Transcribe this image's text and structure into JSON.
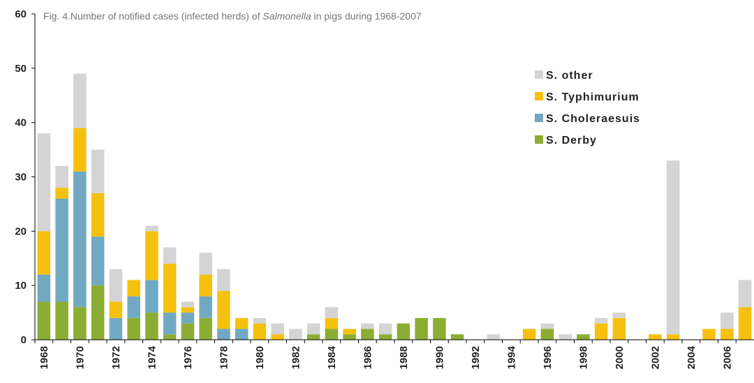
{
  "chart_data": {
    "type": "bar",
    "stacked": true,
    "title": [
      "Fig. 4.Number of notified cases (infected herds) of ",
      "Salmonella",
      " in pigs during 1968-2007"
    ],
    "categories": [
      "1968",
      null,
      "1970",
      null,
      "1972",
      null,
      "1974",
      null,
      "1976",
      null,
      "1978",
      null,
      "1980",
      null,
      "1982",
      null,
      "1984",
      null,
      "1986",
      null,
      "1988",
      null,
      "1990",
      null,
      "1992",
      null,
      "1994",
      null,
      "1996",
      null,
      "1998",
      null,
      "2000",
      null,
      "2002",
      null,
      "2004",
      null,
      "2006",
      null
    ],
    "series": [
      {
        "name": "S. Derby",
        "color": "#8cad33",
        "values": [
          7,
          7,
          6,
          10,
          0,
          4,
          5,
          1,
          3,
          4,
          0,
          0,
          0,
          0,
          0,
          1,
          2,
          1,
          2,
          1,
          3,
          4,
          4,
          1,
          0,
          0,
          0,
          0,
          2,
          0,
          1,
          0,
          0,
          0,
          0,
          0,
          0,
          0,
          0,
          0
        ]
      },
      {
        "name": "S. Choleraesuis",
        "color": "#72a9c2",
        "values": [
          5,
          19,
          25,
          9,
          4,
          4,
          6,
          4,
          2,
          4,
          2,
          2,
          0,
          0,
          0,
          0,
          0,
          0,
          0,
          0,
          0,
          0,
          0,
          0,
          0,
          0,
          0,
          0,
          0,
          0,
          0,
          0,
          0,
          0,
          0,
          0,
          0,
          0,
          0,
          0
        ]
      },
      {
        "name": "S. Typhimurium",
        "color": "#f5c10e",
        "values": [
          8,
          2,
          8,
          8,
          3,
          3,
          9,
          9,
          1,
          4,
          7,
          2,
          3,
          1,
          0,
          0,
          2,
          1,
          0,
          0,
          0,
          0,
          0,
          0,
          0,
          0,
          0,
          2,
          0,
          0,
          0,
          3,
          4,
          0,
          1,
          1,
          0,
          2,
          2,
          6
        ]
      },
      {
        "name": "S. other",
        "color": "#d4d4d4",
        "values": [
          18,
          4,
          10,
          8,
          6,
          0,
          1,
          3,
          1,
          4,
          4,
          0,
          1,
          2,
          2,
          2,
          2,
          0,
          1,
          2,
          0,
          0,
          0,
          0,
          0,
          1,
          0,
          0,
          1,
          1,
          0,
          1,
          1,
          0,
          0,
          32,
          0,
          0,
          3,
          5
        ]
      }
    ],
    "ylim": [
      0,
      60
    ],
    "yticks": [
      0,
      10,
      20,
      30,
      40,
      50,
      60
    ],
    "legend": "top-right"
  }
}
